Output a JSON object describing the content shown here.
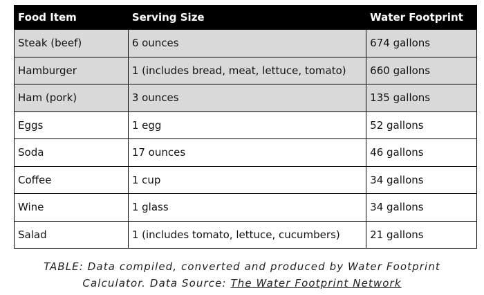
{
  "table": {
    "header": [
      "Food Item",
      "Serving Size",
      "Water Footprint"
    ],
    "rows": [
      [
        "Steak (beef)",
        "6 ounces",
        "674 gallons"
      ],
      [
        "Hamburger",
        "1 (includes bread, meat, lettuce, tomato)",
        "660 gallons"
      ],
      [
        "Ham (pork)",
        "3 ounces",
        "135 gallons"
      ],
      [
        "Eggs",
        "1 egg",
        "52 gallons"
      ],
      [
        "Soda",
        "17 ounces",
        "46 gallons"
      ],
      [
        "Coffee",
        "1 cup",
        "34 gallons"
      ],
      [
        "Wine",
        "1 glass",
        "34 gallons"
      ],
      [
        "Salad",
        "1 (includes tomato, lettuce, cucumbers)",
        "21 gallons"
      ]
    ]
  },
  "caption": {
    "text": "TABLE: Data compiled, converted and produced by Water Footprint Calculator. Data Source:",
    "link": "The Water Footprint Network"
  }
}
